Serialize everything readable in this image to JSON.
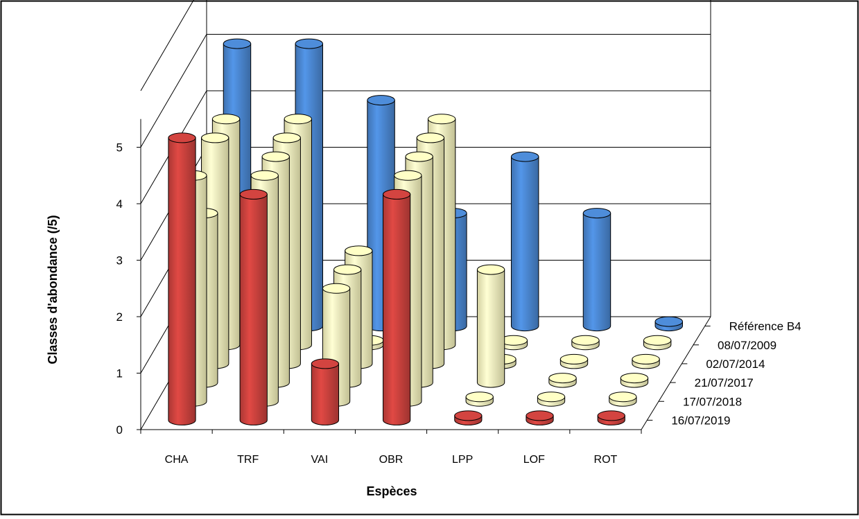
{
  "chart_data": {
    "type": "bar",
    "variant": "3d-cylinder",
    "title": "",
    "xlabel": "Espèces",
    "ylabel": "Classes d'abondance  (/5)",
    "ylim": [
      0,
      5
    ],
    "yticks": [
      "0",
      "1",
      "2",
      "3",
      "4",
      "5"
    ],
    "categories": [
      "CHA",
      "TRF",
      "VAI",
      "OBR",
      "LPP",
      "LOF",
      "ROT"
    ],
    "series": [
      {
        "name": "Référence B4",
        "color": "#4a86d0",
        "values": [
          5,
          5,
          4,
          2,
          3,
          2,
          0
        ]
      },
      {
        "name": "08/07/2009",
        "color": "#f8f5bd",
        "values": [
          4,
          4,
          0,
          4,
          0,
          0,
          0
        ]
      },
      {
        "name": "02/07/2014",
        "color": "#f8f5bd",
        "values": [
          4,
          4,
          2,
          4,
          0,
          0,
          0
        ]
      },
      {
        "name": "21/07/2017",
        "color": "#f8f5bd",
        "values": [
          3,
          4,
          2,
          4,
          2,
          0,
          0
        ]
      },
      {
        "name": "17/07/2018",
        "color": "#f8f5bd",
        "values": [
          4,
          4,
          2,
          4,
          0,
          0,
          0
        ]
      },
      {
        "name": "16/07/2019",
        "color": "#c9413d",
        "values": [
          5,
          4,
          1,
          4,
          0,
          0,
          0
        ]
      }
    ],
    "grid": true,
    "legend": "series labels on depth axis, right"
  }
}
